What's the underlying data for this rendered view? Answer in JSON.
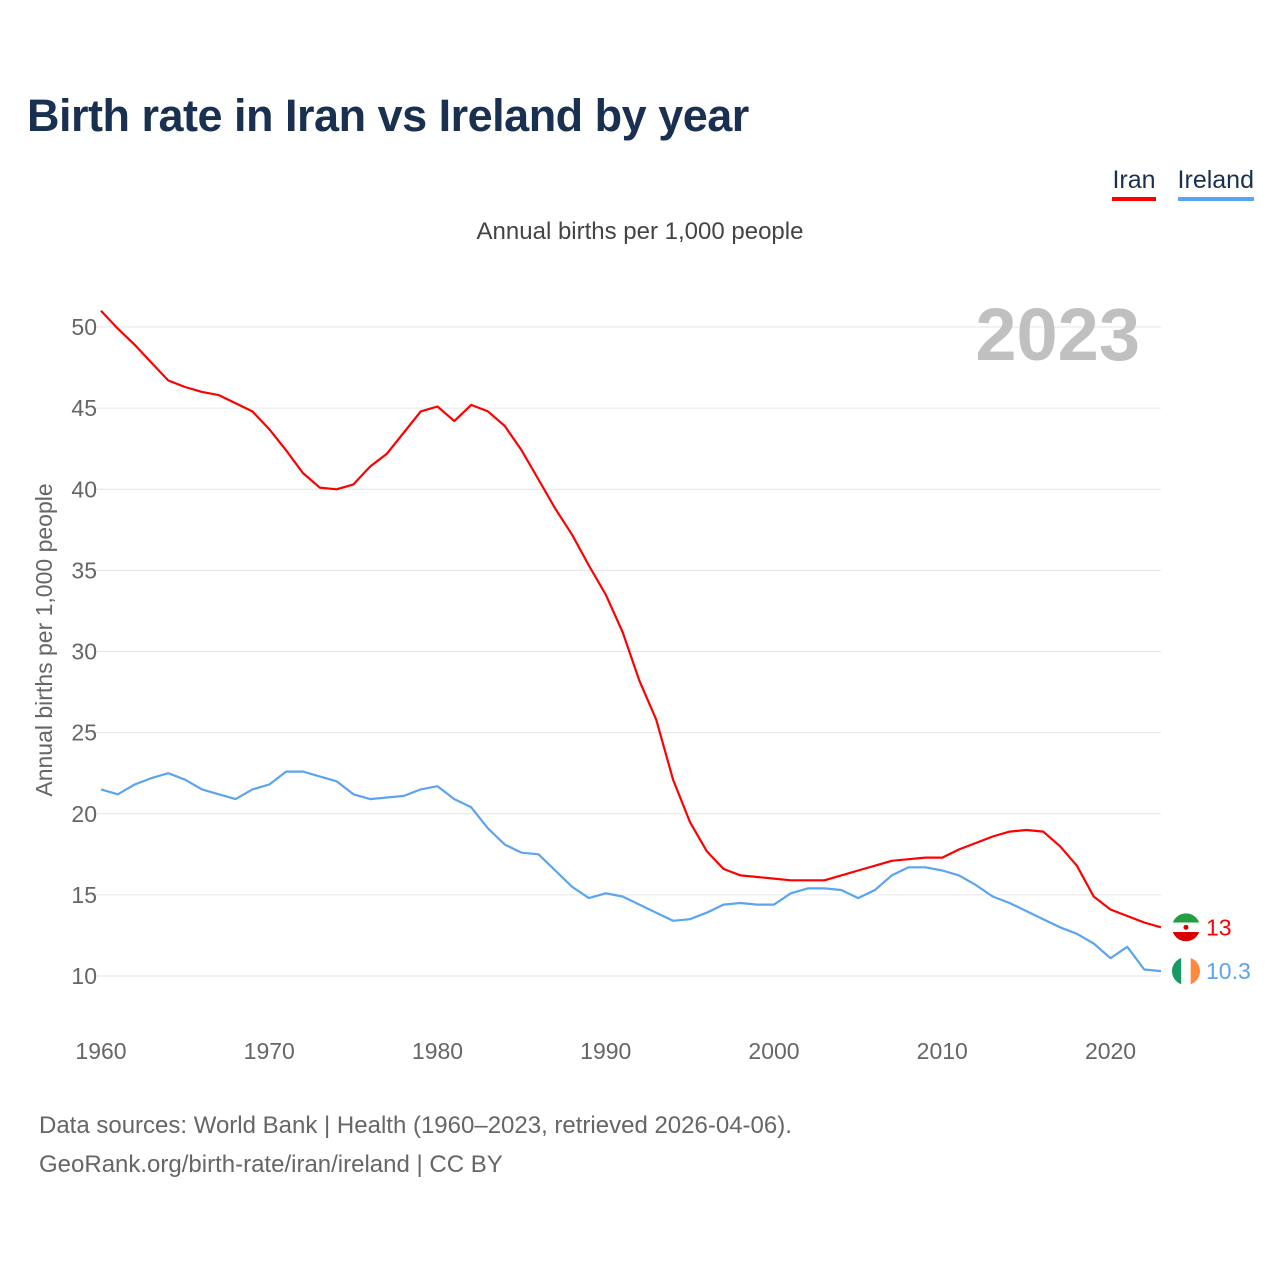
{
  "title": "Birth rate in Iran vs Ireland by year",
  "subtitle": "Annual births per 1,000 people",
  "footer": {
    "line1": "Data sources: World Bank | Health (1960–2023, retrieved 2026-04-06).",
    "line2": "GeoRank.org/birth-rate/iran/ireland | CC BY"
  },
  "chart_data": {
    "type": "line",
    "title": "Birth rate in Iran vs Ireland by year",
    "ylabel": "Annual births per 1,000 people",
    "xlabel": "",
    "year_label": "2023",
    "xlim": [
      1960,
      2023
    ],
    "ylim": [
      10,
      50
    ],
    "x_ticks": [
      1960,
      1970,
      1980,
      1990,
      2000,
      2010,
      2020
    ],
    "y_ticks": [
      10,
      15,
      20,
      25,
      30,
      35,
      40,
      45,
      50
    ],
    "grid": true,
    "legend_position": "top-right",
    "x_start": 1960,
    "series": [
      {
        "name": "Iran",
        "color": "#ff0000",
        "end_label": "13",
        "values": [
          51.0,
          49.9,
          48.9,
          47.8,
          46.7,
          46.3,
          46.0,
          45.8,
          45.3,
          44.8,
          43.7,
          42.4,
          41.0,
          40.1,
          40.0,
          40.3,
          41.4,
          42.2,
          43.5,
          44.8,
          45.1,
          44.2,
          45.2,
          44.8,
          43.9,
          42.4,
          40.6,
          38.8,
          37.2,
          35.3,
          33.5,
          31.2,
          28.2,
          25.8,
          22.1,
          19.5,
          17.7,
          16.6,
          16.2,
          16.1,
          16.0,
          15.9,
          15.9,
          15.9,
          16.2,
          16.5,
          16.8,
          17.1,
          17.2,
          17.3,
          17.3,
          17.8,
          18.2,
          18.6,
          18.9,
          19.0,
          18.9,
          18.0,
          16.8,
          14.9,
          14.1,
          13.7,
          13.3,
          13.0
        ]
      },
      {
        "name": "Ireland",
        "color": "#5ba4f0",
        "end_label": "10.3",
        "values": [
          21.5,
          21.2,
          21.8,
          22.2,
          22.5,
          22.1,
          21.5,
          21.2,
          20.9,
          21.5,
          21.8,
          22.6,
          22.6,
          22.3,
          22.0,
          21.2,
          20.9,
          21.0,
          21.1,
          21.5,
          21.7,
          20.9,
          20.4,
          19.1,
          18.1,
          17.6,
          17.5,
          16.5,
          15.5,
          14.8,
          15.1,
          14.9,
          14.4,
          13.9,
          13.4,
          13.5,
          13.9,
          14.4,
          14.5,
          14.4,
          14.4,
          15.1,
          15.4,
          15.4,
          15.3,
          14.8,
          15.3,
          16.2,
          16.7,
          16.7,
          16.5,
          16.2,
          15.6,
          14.9,
          14.5,
          14.0,
          13.5,
          13.0,
          12.6,
          12.0,
          11.1,
          11.8,
          10.4,
          10.3
        ]
      }
    ]
  }
}
